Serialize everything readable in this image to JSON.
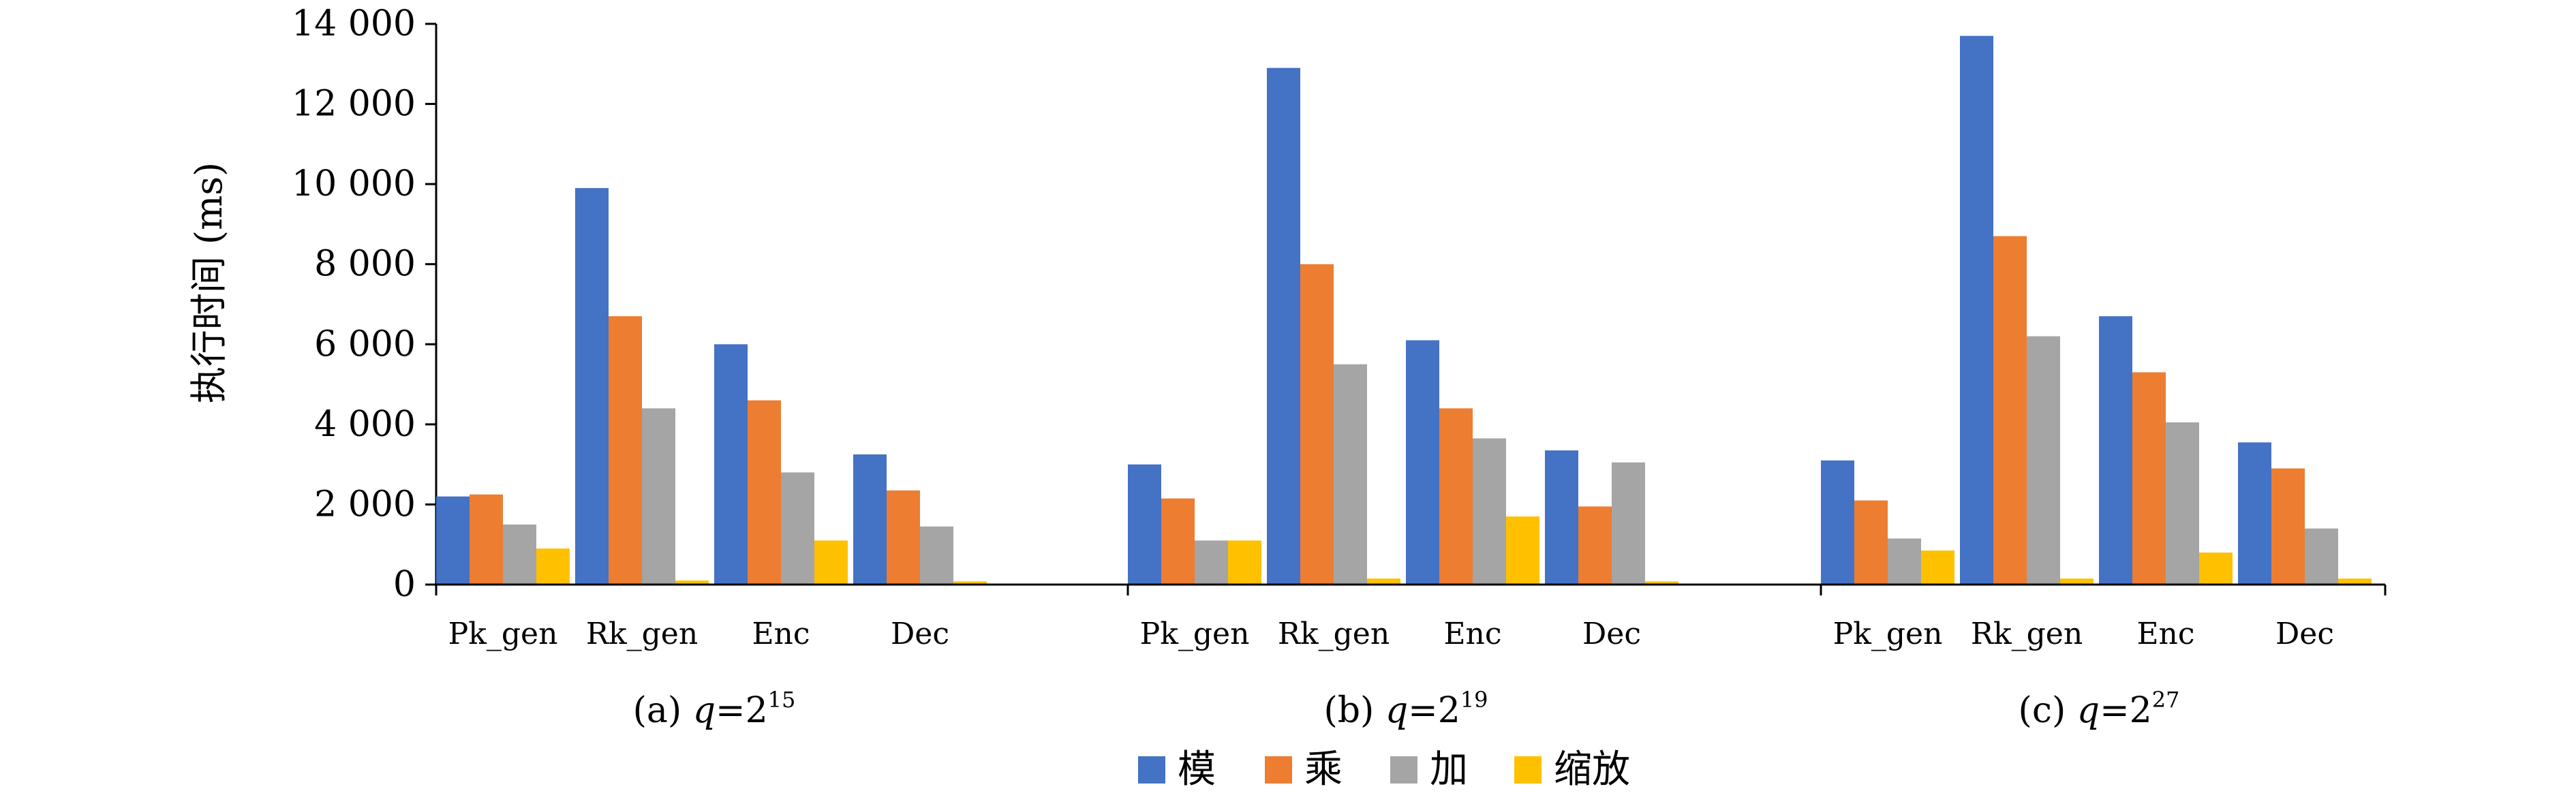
{
  "chart_data": {
    "type": "bar",
    "ylabel": "执行时间 (ms)",
    "ylim": [
      0,
      14000
    ],
    "yticks": [
      0,
      2000,
      4000,
      6000,
      8000,
      10000,
      12000,
      14000
    ],
    "ytick_labels": [
      "0",
      "2 000",
      "4 000",
      "6 000",
      "8 000",
      "10 000",
      "12 000",
      "14 000"
    ],
    "categories": [
      "Pk_gen",
      "Rk_gen",
      "Enc",
      "Dec"
    ],
    "legend": {
      "placement": "bottom"
    },
    "series_styles": [
      {
        "name": "模",
        "color": "#4472C4"
      },
      {
        "name": "乘",
        "color": "#ED7D31"
      },
      {
        "name": "加",
        "color": "#A5A5A5"
      },
      {
        "name": "缩放",
        "color": "#FFC000"
      }
    ],
    "groups": [
      {
        "caption": {
          "prefix": "(a) ",
          "var": "q",
          "eq": "=2",
          "exp": "15"
        },
        "series": [
          {
            "name": "模",
            "values": [
              2200,
              9900,
              6000,
              3250
            ]
          },
          {
            "name": "乘",
            "values": [
              2250,
              6700,
              4600,
              2350
            ]
          },
          {
            "name": "加",
            "values": [
              1500,
              4400,
              2800,
              1450
            ]
          },
          {
            "name": "缩放",
            "values": [
              900,
              100,
              1100,
              80
            ]
          }
        ]
      },
      {
        "caption": {
          "prefix": "(b) ",
          "var": "q",
          "eq": "=2",
          "exp": "19"
        },
        "series": [
          {
            "name": "模",
            "values": [
              3000,
              12900,
              6100,
              3350
            ]
          },
          {
            "name": "乘",
            "values": [
              2150,
              8000,
              4400,
              1950
            ]
          },
          {
            "name": "加",
            "values": [
              1100,
              5500,
              3650,
              3050
            ]
          },
          {
            "name": "缩放",
            "values": [
              1100,
              150,
              1700,
              80
            ]
          }
        ]
      },
      {
        "caption": {
          "prefix": "(c) ",
          "var": "q",
          "eq": "=2",
          "exp": "27"
        },
        "series": [
          {
            "name": "模",
            "values": [
              3100,
              13700,
              6700,
              3550
            ]
          },
          {
            "name": "乘",
            "values": [
              2100,
              8700,
              5300,
              2900
            ]
          },
          {
            "name": "加",
            "values": [
              1150,
              6200,
              4050,
              1400
            ]
          },
          {
            "name": "缩放",
            "values": [
              850,
              150,
              800,
              150
            ]
          }
        ]
      }
    ]
  }
}
